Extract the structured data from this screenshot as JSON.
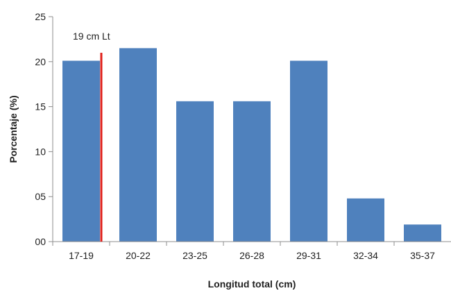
{
  "chart_data": {
    "type": "bar",
    "title": "",
    "xlabel": "Longitud total (cm)",
    "ylabel": "Porcentaje (%)",
    "categories": [
      "17-19",
      "20-22",
      "23-25",
      "26-28",
      "29-31",
      "32-34",
      "35-37"
    ],
    "values": [
      20.1,
      21.5,
      15.6,
      15.6,
      20.1,
      4.8,
      1.9
    ],
    "ylim": [
      0,
      25
    ],
    "yticks": [
      0,
      5,
      10,
      15,
      20,
      25
    ],
    "ytick_labels": [
      "00",
      "05",
      "10",
      "15",
      "20",
      "25"
    ],
    "grid": false,
    "legend": "none",
    "bar_color": "#4f81bd",
    "annotation": {
      "text": "19 cm Lt",
      "x_value": 19,
      "color": "#e0201b"
    }
  }
}
